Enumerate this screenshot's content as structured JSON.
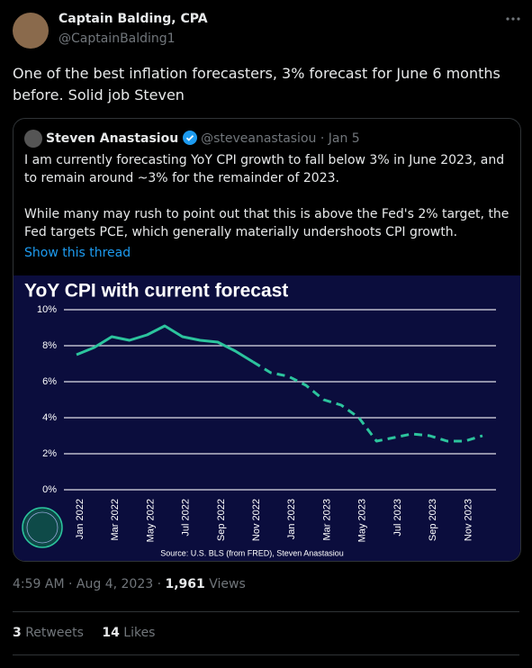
{
  "tweet": {
    "author_name": "Captain Balding, CPA",
    "author_handle": "@CaptainBalding1",
    "text": "One of the best inflation forecasters, 3% forecast for June 6 months before. Solid job Steven"
  },
  "quoted_tweet": {
    "author_name": "Steven Anastasiou",
    "author_handle": "@steveanastasiou",
    "separator": "·",
    "date": "Jan 5",
    "paragraphs": [
      "I am currently forecasting YoY CPI growth to fall below 3% in June 2023, and to remain around ~3% for the remainder of 2023.",
      "While many may rush to point out that this is above the Fed's 2% target, the Fed targets PCE, which generally materially undershoots CPI growth."
    ],
    "show_thread": "Show this thread"
  },
  "chart_data": {
    "type": "line",
    "title": "YoY CPI with current forecast",
    "source": "Source: U.S. BLS (from FRED), Steven Anastasiou",
    "categories": [
      "Jan 2022",
      null,
      "Mar 2022",
      null,
      "May 2022",
      null,
      "Jul 2022",
      null,
      "Sep 2022",
      null,
      "Nov 2022",
      null,
      "Jan 2023",
      null,
      "Mar 2023",
      null,
      "May 2023",
      null,
      "Jul 2023",
      null,
      "Sep 2023",
      null,
      "Nov 2023",
      null
    ],
    "series": [
      {
        "color": "#2cc49d",
        "dashed": false,
        "values": [
          7.5,
          7.9,
          8.5,
          8.3,
          8.6,
          9.1,
          8.5,
          8.3,
          8.2,
          7.7,
          7.1,
          null,
          null,
          null,
          null,
          null,
          null,
          null,
          null,
          null,
          null,
          null,
          null,
          null
        ]
      },
      {
        "color": "#2cc49d",
        "dashed": true,
        "values": [
          null,
          null,
          null,
          null,
          null,
          null,
          null,
          null,
          null,
          null,
          7.1,
          6.5,
          6.3,
          5.8,
          5.0,
          4.7,
          4.0,
          2.7,
          2.9,
          3.1,
          3.0,
          2.7,
          2.7,
          3.0
        ]
      }
    ],
    "ylim": [
      0,
      10
    ],
    "yticks": [
      {
        "value": 0,
        "label": "0%"
      },
      {
        "value": 2,
        "label": "2%"
      },
      {
        "value": 4,
        "label": "4%"
      },
      {
        "value": 6,
        "label": "6%"
      },
      {
        "value": 8,
        "label": "8%"
      },
      {
        "value": 10,
        "label": "10%"
      }
    ],
    "grid": true
  },
  "meta": {
    "time": "4:59 AM",
    "separator": "·",
    "date": "Aug 4, 2023",
    "views": "1,961",
    "views_label": "Views"
  },
  "stats": {
    "retweets": {
      "count": 3,
      "label": "Retweets"
    },
    "likes": {
      "count": 14,
      "label": "Likes"
    }
  }
}
